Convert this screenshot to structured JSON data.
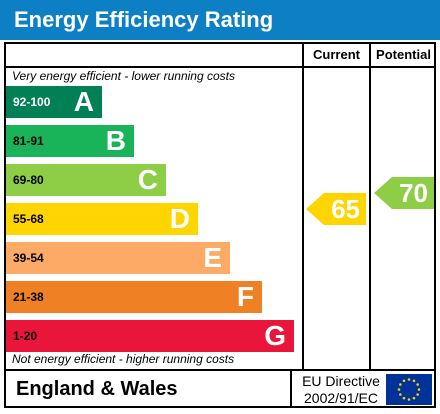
{
  "title": "Energy Efficiency Rating",
  "columns": {
    "current": "Current",
    "potential": "Potential"
  },
  "top_note": "Very energy efficient - lower running costs",
  "bottom_note": "Not energy efficient - higher running costs",
  "bands": [
    {
      "range": "92-100",
      "letter": "A",
      "color": "#008054"
    },
    {
      "range": "81-91",
      "letter": "B",
      "color": "#19b459"
    },
    {
      "range": "69-80",
      "letter": "C",
      "color": "#8dce46"
    },
    {
      "range": "55-68",
      "letter": "D",
      "color": "#ffd500"
    },
    {
      "range": "39-54",
      "letter": "E",
      "color": "#fcaa65"
    },
    {
      "range": "21-38",
      "letter": "F",
      "color": "#ef8023"
    },
    {
      "range": "1-20",
      "letter": "G",
      "color": "#e9153b"
    }
  ],
  "current": {
    "value": "65",
    "band": "D",
    "color": "#ffd500"
  },
  "potential": {
    "value": "70",
    "band": "C",
    "color": "#8dce46"
  },
  "footer": {
    "region": "England & Wales",
    "directive_line1": "EU Directive",
    "directive_line2": "2002/91/EC"
  },
  "colors": {
    "title_bar": "#0d7fc4",
    "flag_blue": "#003399",
    "flag_stars": "#ffcc00"
  }
}
